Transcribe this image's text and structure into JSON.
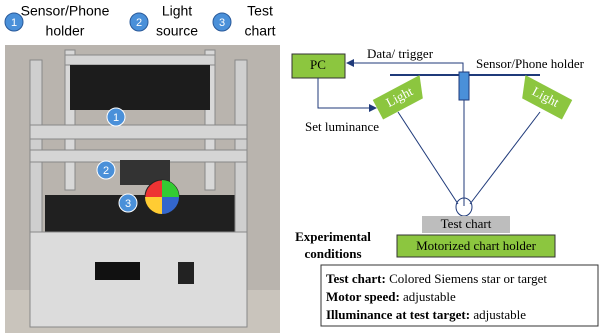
{
  "top_labels": [
    {
      "number": "1",
      "lines": [
        "Sensor/Phone",
        "holder"
      ]
    },
    {
      "number": "2",
      "lines": [
        "Light",
        "source"
      ]
    },
    {
      "number": "3",
      "lines": [
        "Test",
        "chart"
      ]
    }
  ],
  "photo_markers": [
    "1",
    "2",
    "3"
  ],
  "diagram": {
    "pc": "PC",
    "data_trigger": "Data/ trigger",
    "sensor_holder": "Sensor/Phone holder",
    "lights": [
      "Light",
      "Light"
    ],
    "set_luminance": "Set luminance",
    "test_chart": "Test chart",
    "chart_holder": "Motorized chart holder"
  },
  "conditions": {
    "title_lines": [
      "Experimental",
      "conditions"
    ],
    "items": [
      {
        "label": "Test chart:",
        "value": "Colored Siemens star or target"
      },
      {
        "label": "Motor speed:",
        "value": "adjustable"
      },
      {
        "label": "Illuminance at test target:",
        "value": "adjustable"
      }
    ]
  }
}
